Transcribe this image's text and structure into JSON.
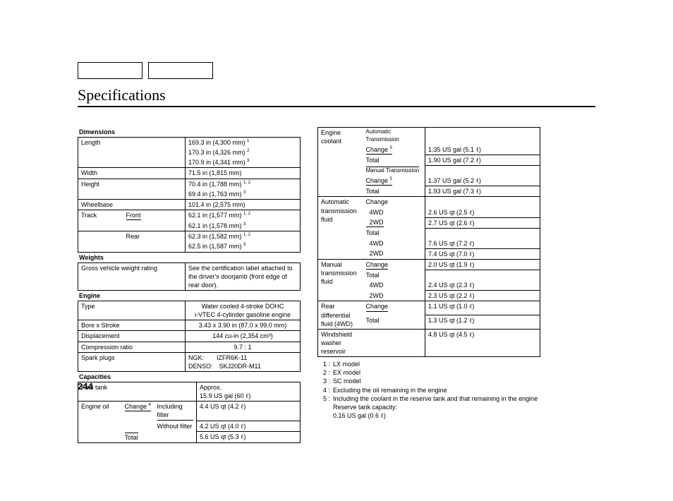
{
  "title": "Specifications",
  "pageNumber": "244",
  "liter": "ℓ",
  "left": {
    "dimensions": {
      "head": "Dimensions",
      "rows": [
        {
          "label": "Length",
          "sub": "",
          "values": [
            {
              "t": "169.3 in (4,300 mm)",
              "sup": "1"
            },
            {
              "t": "170.3 in (4,326 mm)",
              "sup": "2"
            },
            {
              "t": "170.9 in (4,341 mm)",
              "sup": "3"
            }
          ]
        },
        {
          "label": "Width",
          "sub": "",
          "values": [
            {
              "t": "71.5 in (1,815 mm)",
              "sup": ""
            }
          ]
        },
        {
          "label": "Height",
          "sub": "",
          "values": [
            {
              "t": "70.4 in (1,788 mm)",
              "sup": "1, 2"
            },
            {
              "t": "69.4 in (1,763 mm)",
              "sup": "3"
            }
          ]
        },
        {
          "label": "Wheelbase",
          "sub": "",
          "values": [
            {
              "t": "101.4 in (2,575 mm)",
              "sup": ""
            }
          ]
        },
        {
          "label": "Track",
          "sub": "Front",
          "underline": true,
          "values": [
            {
              "t": "62.1 in (1,577 mm)",
              "sup": "1, 2"
            },
            {
              "t": "62.1 in (1,578 mm)",
              "sup": "3"
            }
          ]
        },
        {
          "label": "",
          "sub": "Rear",
          "values": [
            {
              "t": "62.3 in (1,582 mm)",
              "sup": "1, 2"
            },
            {
              "t": "62.5 in (1,587 mm)",
              "sup": "3"
            }
          ]
        }
      ]
    },
    "weights": {
      "head": "Weights",
      "label": "Gross vehicle weight rating",
      "value": "See the certification label attached to the driver's doorjamb (front edge of rear door)."
    },
    "engine": {
      "head": "Engine",
      "rows": [
        {
          "label": "Type",
          "value": "Water cooled 4-stroke DOHC\ni-VTEC 4-cylinder gasoline engine",
          "center": true
        },
        {
          "label": "Bore x Stroke",
          "value": "3.43 x 3.90 in (87.0 x 99.0 mm)",
          "center": true
        },
        {
          "label": "Displacement",
          "value": "144 cu-in (2,354 cm³)",
          "center": true
        },
        {
          "label": "Compression ratio",
          "value": "9.7 : 1",
          "center": true
        },
        {
          "label": "Spark plugs",
          "value": "NGK:  IZFR6K-11\nDENSO: SKJ20DR-M11",
          "center": false
        }
      ]
    },
    "capacities": {
      "head": "Capacities",
      "fuelTank": {
        "label": "Fuel tank",
        "value": "Approx.\n15.9 US gal (60 ℓ)"
      },
      "engineOil": {
        "label": "Engine oil",
        "rows": [
          {
            "sub": "Change",
            "sup": "4",
            "underline": true,
            "valsub": "Including filter",
            "valsubUnderline": true,
            "value": "4.4 US qt (4.2 ℓ)"
          },
          {
            "sub": "",
            "valsub": "Without filter",
            "value": "4.2 US qt (4.0 ℓ)"
          },
          {
            "sub": "",
            "valsub": "Total",
            "overline": true,
            "value": "5.6 US qt (5.3 ℓ)"
          }
        ]
      }
    }
  },
  "right": {
    "coolant": {
      "label": "Engine coolant",
      "groups": [
        {
          "head": "Automatic Transmission",
          "rows": [
            {
              "sub": "Change",
              "sup": "5",
              "underline": true,
              "value": "1.35 US gal (5.1 ℓ)"
            },
            {
              "sub": "Total",
              "value": "1.90 US gal (7.2 ℓ)"
            }
          ]
        },
        {
          "head": "Manual Transmission",
          "rows": [
            {
              "sub": "Change",
              "sup": "5",
              "underline": true,
              "value": "1.37 US gal (5.2 ℓ)"
            },
            {
              "sub": "Total",
              "value": "1.93 US gal (7.3 ℓ)"
            }
          ]
        }
      ]
    },
    "autoTrans": {
      "label": "Automatic transmission fluid",
      "rows": [
        {
          "sub": "Change",
          "value": ""
        },
        {
          "sub": "4WD",
          "indent": true,
          "value": "2.6 US qt (2.5 ℓ)"
        },
        {
          "sub": "2WD",
          "indent": true,
          "underline": true,
          "value": "2.7 US qt (2.6 ℓ)"
        },
        {
          "sub": "Total",
          "value": ""
        },
        {
          "sub": "4WD",
          "indent": true,
          "value": "7.6 US qt (7.2 ℓ)"
        },
        {
          "sub": "2WD",
          "indent": true,
          "value": "7.4 US qt (7.0 ℓ)"
        }
      ]
    },
    "manualTrans": {
      "label": "Manual transmission fluid",
      "rows": [
        {
          "sub": "Change",
          "underline": true,
          "value": "2.0 US qt (1.9 ℓ)"
        },
        {
          "sub": "Total",
          "value": ""
        },
        {
          "sub": "4WD",
          "indent": true,
          "value": "2.4 US qt (2.3 ℓ)"
        },
        {
          "sub": "2WD",
          "indent": true,
          "value": "2.3 US qt (2.2 ℓ)"
        }
      ]
    },
    "rearDiff": {
      "label": "Rear differential fluid (4WD)",
      "rows": [
        {
          "sub": "Change",
          "underline": true,
          "value": "1.1 US qt (1.0 ℓ)"
        },
        {
          "sub": "Total",
          "value": "1.3 US qt (1.2 ℓ)"
        }
      ]
    },
    "washer": {
      "label": "Windshield washer reservoir",
      "value": "4.8 US qt (4.5 ℓ)"
    }
  },
  "footnotes": [
    {
      "n": "1 :",
      "t": "LX model"
    },
    {
      "n": "2 :",
      "t": "EX model"
    },
    {
      "n": "3 :",
      "t": "SC model"
    },
    {
      "n": "4 :",
      "t": "Excluding the oil remaining in the engine"
    },
    {
      "n": "5 :",
      "t": "Including the coolant in the reserve tank and that remaining in the engine"
    }
  ],
  "reserve": {
    "l1": "Reserve tank capacity:",
    "l2": "0.16 US gal (0.6 ℓ)"
  }
}
